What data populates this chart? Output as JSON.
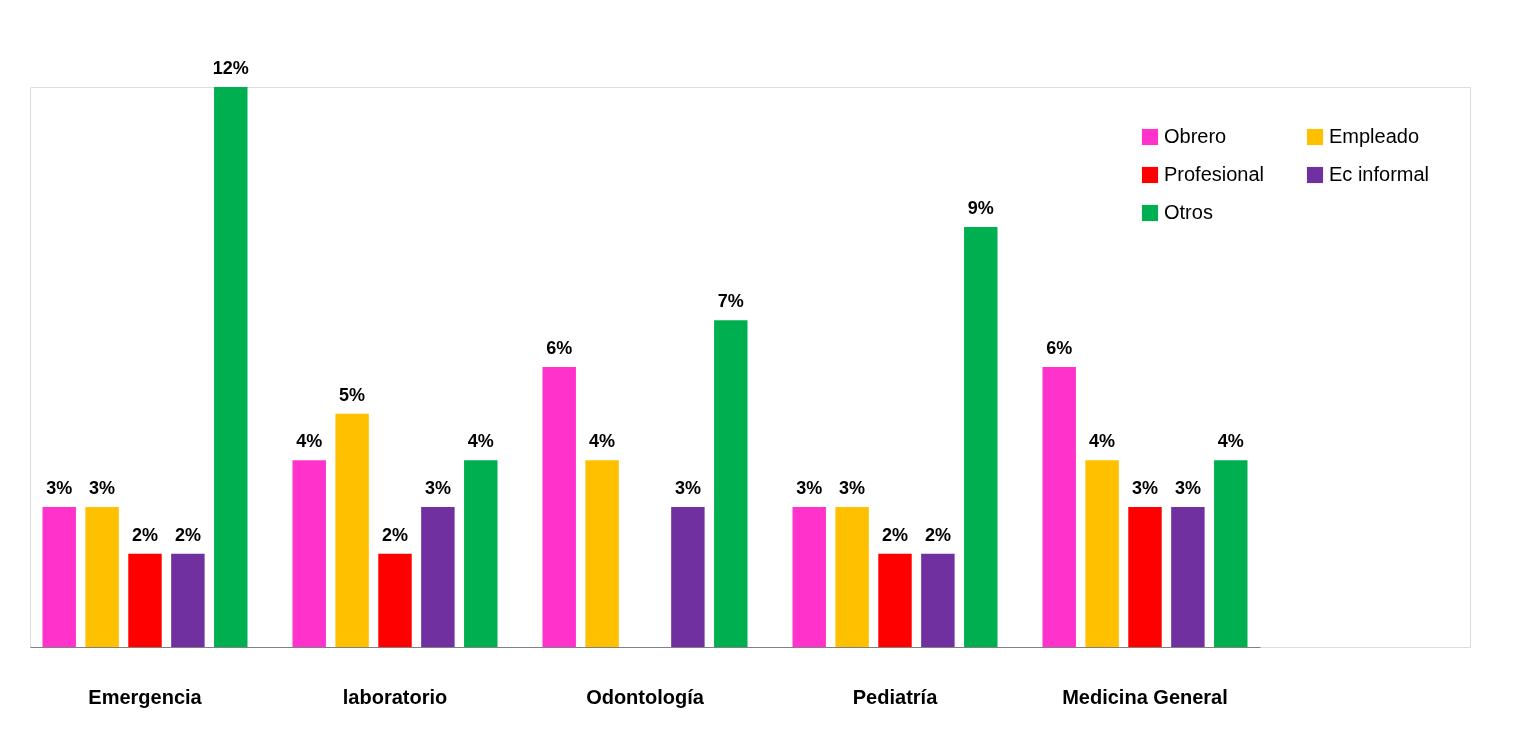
{
  "chart_data": {
    "type": "bar",
    "categories": [
      "Emergencia",
      "laboratorio",
      "Odontología",
      "Pediatría",
      "Medicina General"
    ],
    "series": [
      {
        "name": "Obrero",
        "color": "#ff33cc",
        "values": [
          3,
          4,
          6,
          3,
          6
        ],
        "value_labels": [
          "3%",
          "4%",
          "6%",
          "3%",
          "6%"
        ]
      },
      {
        "name": "Empleado",
        "color": "#ffc000",
        "values": [
          3,
          5,
          4,
          3,
          4
        ],
        "value_labels": [
          "3%",
          "5%",
          "4%",
          "3%",
          "4%"
        ]
      },
      {
        "name": "Profesional",
        "color": "#ff0000",
        "values": [
          2,
          2,
          null,
          2,
          3
        ],
        "value_labels": [
          "2%",
          "2%",
          null,
          "2%",
          "3%"
        ]
      },
      {
        "name": "Ec informal",
        "color": "#7030a0",
        "values": [
          2,
          3,
          3,
          2,
          3
        ],
        "value_labels": [
          "2%",
          "3%",
          "3%",
          "2%",
          "3%"
        ]
      },
      {
        "name": "Otros",
        "color": "#00b050",
        "values": [
          12,
          4,
          7,
          9,
          4
        ],
        "value_labels": [
          "12%",
          "4%",
          "7%",
          "9%",
          "4%"
        ]
      }
    ],
    "legend": "top right",
    "grid": false,
    "tick_labels": "x"
  }
}
